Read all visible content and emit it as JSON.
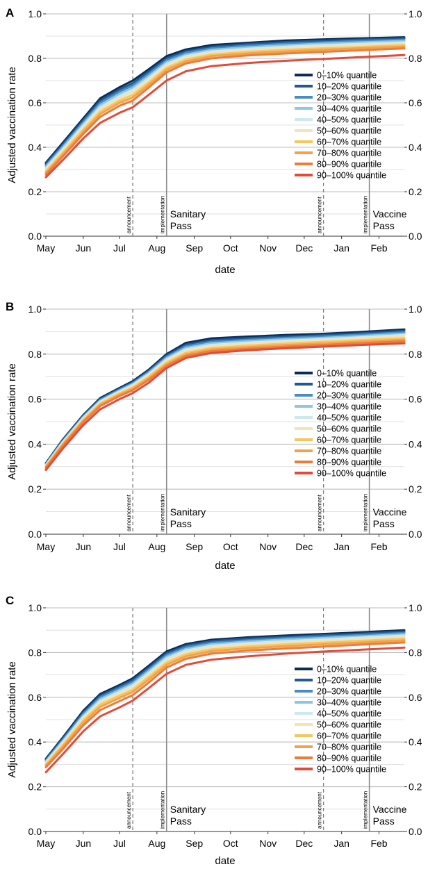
{
  "palette": [
    "#0b2d55",
    "#1f5a93",
    "#4a8cc2",
    "#8ec7e3",
    "#cfe8ee",
    "#f3e3b8",
    "#f4c860",
    "#f4a24a",
    "#ee7b3a",
    "#e34a3a"
  ],
  "chart_data": [
    {
      "panel": "A",
      "type": "line",
      "xlabel": "date",
      "ylabel": "Adjusted vaccination rate",
      "xticks": [
        "May",
        "Jun",
        "Jul",
        "Aug",
        "Sep",
        "Oct",
        "Nov",
        "Dec",
        "Jan",
        "Feb"
      ],
      "xlim": [
        "2021-05-01",
        "2022-02-22"
      ],
      "ylim": [
        0,
        1
      ],
      "yticks_left": [
        "0.0",
        "0.2",
        "0.4",
        "0.6",
        "0.8",
        "1.0"
      ],
      "yticks_right": [
        "0.0",
        "0.2",
        "0.4",
        "0.6",
        "0.8",
        "1.0"
      ],
      "grid": true,
      "legend_position": "right-middle",
      "events": [
        {
          "date": "2021-07-12",
          "kind": "announcement",
          "style": "dashed",
          "label": "announcement",
          "pass": ""
        },
        {
          "date": "2021-08-09",
          "kind": "implementation",
          "style": "solid",
          "label": "implementation",
          "pass": "Sanitary Pass"
        },
        {
          "date": "2021-12-17",
          "kind": "announcement",
          "style": "dashed",
          "label": "announcement",
          "pass": ""
        },
        {
          "date": "2022-01-24",
          "kind": "implementation",
          "style": "solid",
          "label": "implementation",
          "pass": "Vaccine Pass"
        }
      ],
      "x": [
        "2021-05-01",
        "2021-05-15",
        "2021-06-01",
        "2021-06-15",
        "2021-07-01",
        "2021-07-12",
        "2021-07-25",
        "2021-08-09",
        "2021-08-25",
        "2021-09-15",
        "2021-10-15",
        "2021-11-15",
        "2021-12-15",
        "2022-01-15",
        "2022-02-22"
      ],
      "series": [
        {
          "name": "0–10% quantile",
          "values": [
            0.33,
            0.42,
            0.53,
            0.62,
            0.67,
            0.7,
            0.75,
            0.81,
            0.84,
            0.86,
            0.87,
            0.88,
            0.885,
            0.89,
            0.895
          ]
        },
        {
          "name": "10–20% quantile",
          "values": [
            0.325,
            0.412,
            0.522,
            0.61,
            0.66,
            0.688,
            0.74,
            0.8,
            0.832,
            0.852,
            0.864,
            0.873,
            0.879,
            0.884,
            0.89
          ]
        },
        {
          "name": "20–30% quantile",
          "values": [
            0.318,
            0.405,
            0.514,
            0.6,
            0.65,
            0.678,
            0.73,
            0.792,
            0.825,
            0.845,
            0.857,
            0.866,
            0.872,
            0.878,
            0.884
          ]
        },
        {
          "name": "30–40% quantile",
          "values": [
            0.312,
            0.398,
            0.505,
            0.59,
            0.64,
            0.668,
            0.72,
            0.783,
            0.817,
            0.838,
            0.85,
            0.859,
            0.866,
            0.872,
            0.878
          ]
        },
        {
          "name": "40–50% quantile",
          "values": [
            0.305,
            0.39,
            0.497,
            0.58,
            0.63,
            0.658,
            0.71,
            0.775,
            0.81,
            0.831,
            0.843,
            0.852,
            0.859,
            0.865,
            0.872
          ]
        },
        {
          "name": "50–60% quantile",
          "values": [
            0.298,
            0.383,
            0.488,
            0.57,
            0.62,
            0.648,
            0.7,
            0.766,
            0.802,
            0.824,
            0.836,
            0.845,
            0.852,
            0.858,
            0.866
          ]
        },
        {
          "name": "60–70% quantile",
          "values": [
            0.292,
            0.375,
            0.479,
            0.56,
            0.61,
            0.636,
            0.69,
            0.757,
            0.794,
            0.817,
            0.829,
            0.838,
            0.845,
            0.851,
            0.86
          ]
        },
        {
          "name": "70–80% quantile",
          "values": [
            0.285,
            0.367,
            0.47,
            0.55,
            0.6,
            0.624,
            0.68,
            0.748,
            0.786,
            0.81,
            0.822,
            0.831,
            0.838,
            0.845,
            0.853
          ]
        },
        {
          "name": "80–90% quantile",
          "values": [
            0.277,
            0.358,
            0.46,
            0.537,
            0.587,
            0.61,
            0.668,
            0.737,
            0.777,
            0.8,
            0.813,
            0.822,
            0.829,
            0.836,
            0.845
          ]
        },
        {
          "name": "90–100% quantile",
          "values": [
            0.265,
            0.342,
            0.44,
            0.51,
            0.555,
            0.58,
            0.635,
            0.7,
            0.742,
            0.765,
            0.779,
            0.789,
            0.797,
            0.805,
            0.815
          ]
        }
      ]
    },
    {
      "panel": "B",
      "type": "line",
      "xlabel": "date",
      "ylabel": "Adjusted vaccination rate",
      "xticks": [
        "May",
        "Jun",
        "Jul",
        "Aug",
        "Sep",
        "Oct",
        "Nov",
        "Dec",
        "Jan",
        "Feb"
      ],
      "xlim": [
        "2021-05-01",
        "2022-02-22"
      ],
      "ylim": [
        0,
        1
      ],
      "yticks_left": [
        "0.0",
        "0.2",
        "0.4",
        "0.6",
        "0.8",
        "1.0"
      ],
      "yticks_right": [
        "0.0",
        "0.2",
        "0.4",
        "0.6",
        "0.8",
        "1.0"
      ],
      "grid": true,
      "legend_position": "right-middle",
      "events": [
        {
          "date": "2021-07-12",
          "kind": "announcement",
          "style": "dashed",
          "label": "announcement",
          "pass": ""
        },
        {
          "date": "2021-08-09",
          "kind": "implementation",
          "style": "solid",
          "label": "implementation",
          "pass": "Sanitary Pass"
        },
        {
          "date": "2021-12-17",
          "kind": "announcement",
          "style": "dashed",
          "label": "announcement",
          "pass": ""
        },
        {
          "date": "2022-01-24",
          "kind": "implementation",
          "style": "solid",
          "label": "implementation",
          "pass": "Vaccine Pass"
        }
      ],
      "x": [
        "2021-05-01",
        "2021-05-15",
        "2021-06-01",
        "2021-06-15",
        "2021-07-01",
        "2021-07-12",
        "2021-07-25",
        "2021-08-09",
        "2021-08-25",
        "2021-09-15",
        "2021-10-15",
        "2021-11-15",
        "2021-12-15",
        "2022-01-15",
        "2022-02-22"
      ],
      "series": [
        {
          "name": "0–10% quantile",
          "values": [
            0.315,
            0.42,
            0.53,
            0.605,
            0.65,
            0.68,
            0.73,
            0.8,
            0.85,
            0.87,
            0.878,
            0.885,
            0.89,
            0.898,
            0.91
          ]
        },
        {
          "name": "10–20% quantile",
          "values": [
            0.313,
            0.417,
            0.527,
            0.601,
            0.646,
            0.675,
            0.725,
            0.794,
            0.842,
            0.862,
            0.871,
            0.878,
            0.884,
            0.892,
            0.904
          ]
        },
        {
          "name": "20–30% quantile",
          "values": [
            0.311,
            0.414,
            0.523,
            0.597,
            0.642,
            0.671,
            0.72,
            0.788,
            0.835,
            0.855,
            0.864,
            0.872,
            0.878,
            0.886,
            0.897
          ]
        },
        {
          "name": "30–40% quantile",
          "values": [
            0.309,
            0.411,
            0.52,
            0.593,
            0.638,
            0.667,
            0.715,
            0.782,
            0.828,
            0.848,
            0.858,
            0.866,
            0.872,
            0.88,
            0.891
          ]
        },
        {
          "name": "40–50% quantile",
          "values": [
            0.306,
            0.408,
            0.516,
            0.589,
            0.634,
            0.662,
            0.71,
            0.776,
            0.821,
            0.841,
            0.851,
            0.86,
            0.866,
            0.874,
            0.885
          ]
        },
        {
          "name": "50–60% quantile",
          "values": [
            0.304,
            0.405,
            0.512,
            0.585,
            0.63,
            0.658,
            0.705,
            0.77,
            0.814,
            0.834,
            0.845,
            0.854,
            0.86,
            0.868,
            0.878
          ]
        },
        {
          "name": "60–70% quantile",
          "values": [
            0.301,
            0.401,
            0.508,
            0.58,
            0.625,
            0.652,
            0.698,
            0.762,
            0.806,
            0.827,
            0.838,
            0.847,
            0.854,
            0.862,
            0.871
          ]
        },
        {
          "name": "70–80% quantile",
          "values": [
            0.298,
            0.397,
            0.504,
            0.575,
            0.62,
            0.646,
            0.692,
            0.755,
            0.799,
            0.82,
            0.831,
            0.84,
            0.847,
            0.855,
            0.864
          ]
        },
        {
          "name": "80–90% quantile",
          "values": [
            0.294,
            0.392,
            0.498,
            0.569,
            0.614,
            0.64,
            0.685,
            0.748,
            0.792,
            0.813,
            0.824,
            0.833,
            0.84,
            0.848,
            0.857
          ]
        },
        {
          "name": "90–100% quantile",
          "values": [
            0.285,
            0.38,
            0.485,
            0.555,
            0.6,
            0.627,
            0.672,
            0.738,
            0.783,
            0.805,
            0.817,
            0.826,
            0.833,
            0.84,
            0.848
          ]
        }
      ]
    },
    {
      "panel": "C",
      "type": "line",
      "xlabel": "date",
      "ylabel": "Adjusted vaccination rate",
      "xticks": [
        "May",
        "Jun",
        "Jul",
        "Aug",
        "Sep",
        "Oct",
        "Nov",
        "Dec",
        "Jan",
        "Feb"
      ],
      "xlim": [
        "2021-05-01",
        "2022-02-22"
      ],
      "ylim": [
        0,
        1
      ],
      "yticks_left": [
        "0.0",
        "0.2",
        "0.4",
        "0.6",
        "0.8",
        "1.0"
      ],
      "yticks_right": [
        "0.0",
        "0.2",
        "0.4",
        "0.6",
        "0.8",
        "1.0"
      ],
      "grid": true,
      "legend_position": "right-middle",
      "events": [
        {
          "date": "2021-07-12",
          "kind": "announcement",
          "style": "dashed",
          "label": "announcement",
          "pass": ""
        },
        {
          "date": "2021-08-09",
          "kind": "implementation",
          "style": "solid",
          "label": "implementation",
          "pass": "Sanitary Pass"
        },
        {
          "date": "2021-12-17",
          "kind": "announcement",
          "style": "dashed",
          "label": "announcement",
          "pass": ""
        },
        {
          "date": "2022-01-24",
          "kind": "implementation",
          "style": "solid",
          "label": "implementation",
          "pass": "Vaccine Pass"
        }
      ],
      "x": [
        "2021-05-01",
        "2021-05-15",
        "2021-06-01",
        "2021-06-15",
        "2021-07-01",
        "2021-07-12",
        "2021-07-25",
        "2021-08-09",
        "2021-08-25",
        "2021-09-15",
        "2021-10-15",
        "2021-11-15",
        "2021-12-15",
        "2022-01-15",
        "2022-02-22"
      ],
      "series": [
        {
          "name": "0–10% quantile",
          "values": [
            0.325,
            0.42,
            0.54,
            0.615,
            0.655,
            0.685,
            0.74,
            0.805,
            0.838,
            0.857,
            0.868,
            0.876,
            0.883,
            0.89,
            0.9
          ]
        },
        {
          "name": "10–20% quantile",
          "values": [
            0.321,
            0.415,
            0.533,
            0.607,
            0.648,
            0.677,
            0.732,
            0.797,
            0.831,
            0.851,
            0.862,
            0.87,
            0.877,
            0.884,
            0.894
          ]
        },
        {
          "name": "20–30% quantile",
          "values": [
            0.317,
            0.409,
            0.526,
            0.6,
            0.641,
            0.669,
            0.724,
            0.789,
            0.824,
            0.844,
            0.855,
            0.864,
            0.871,
            0.878,
            0.888
          ]
        },
        {
          "name": "30–40% quantile",
          "values": [
            0.313,
            0.404,
            0.519,
            0.592,
            0.633,
            0.661,
            0.716,
            0.781,
            0.816,
            0.837,
            0.849,
            0.858,
            0.865,
            0.872,
            0.882
          ]
        },
        {
          "name": "40–50% quantile",
          "values": [
            0.309,
            0.398,
            0.512,
            0.584,
            0.625,
            0.653,
            0.708,
            0.773,
            0.809,
            0.83,
            0.842,
            0.851,
            0.858,
            0.866,
            0.876
          ]
        },
        {
          "name": "50–60% quantile",
          "values": [
            0.304,
            0.392,
            0.504,
            0.576,
            0.617,
            0.644,
            0.699,
            0.764,
            0.801,
            0.822,
            0.835,
            0.844,
            0.852,
            0.859,
            0.869
          ]
        },
        {
          "name": "60–70% quantile",
          "values": [
            0.299,
            0.385,
            0.496,
            0.567,
            0.607,
            0.634,
            0.689,
            0.755,
            0.792,
            0.814,
            0.827,
            0.836,
            0.844,
            0.852,
            0.862
          ]
        },
        {
          "name": "70–80% quantile",
          "values": [
            0.294,
            0.378,
            0.487,
            0.557,
            0.597,
            0.624,
            0.679,
            0.745,
            0.783,
            0.806,
            0.819,
            0.828,
            0.836,
            0.844,
            0.854
          ]
        },
        {
          "name": "80–90% quantile",
          "values": [
            0.287,
            0.368,
            0.475,
            0.543,
            0.583,
            0.61,
            0.665,
            0.733,
            0.772,
            0.795,
            0.809,
            0.818,
            0.826,
            0.835,
            0.845
          ]
        },
        {
          "name": "90–100% quantile",
          "values": [
            0.265,
            0.345,
            0.448,
            0.515,
            0.555,
            0.585,
            0.64,
            0.705,
            0.745,
            0.768,
            0.783,
            0.795,
            0.804,
            0.812,
            0.822
          ]
        }
      ]
    }
  ]
}
